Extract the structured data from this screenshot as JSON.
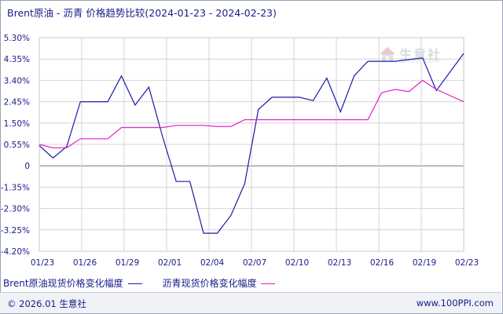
{
  "title": "Brent原油 - 沥青 价格趋势比较(2024-01-23 - 2024-02-23)",
  "watermark": {
    "logo_text": "生意社",
    "logo_sub": "100PPI.COM",
    "icon": "house-logo-icon"
  },
  "legend": [
    {
      "label": "Brent原油现货价格变化幅度",
      "color": "#1a1aa8"
    },
    {
      "label": "沥青现货价格变化幅度",
      "color": "#e020c8"
    }
  ],
  "footer": {
    "copyright": "© 2026.01 生意社",
    "site": "www.100PPI.com"
  },
  "chart_data": {
    "type": "line",
    "x_tick_labels": [
      "01/23",
      "01/26",
      "01/29",
      "02/01",
      "02/04",
      "02/07",
      "02/10",
      "02/13",
      "02/16",
      "02/19",
      "02/23"
    ],
    "y_tick_labels": [
      "5.30%",
      "4.35%",
      "3.40%",
      "2.45%",
      "1.50%",
      "0.55%",
      "0",
      "-1.35%",
      "-2.30%",
      "-3.25%",
      "-4.20%"
    ],
    "ylim": [
      -4.2,
      5.3
    ],
    "xlim": [
      "2024-01-23",
      "2024-02-23"
    ],
    "grid": true,
    "legend_position": "bottom",
    "series": [
      {
        "name": "Brent原油现货价格变化幅度",
        "color": "#1a1aa8",
        "points": [
          [
            "2024-01-23",
            0.5
          ],
          [
            "2024-01-24",
            -0.05
          ],
          [
            "2024-01-25",
            0.45
          ],
          [
            "2024-01-26",
            2.45
          ],
          [
            "2024-01-28",
            2.45
          ],
          [
            "2024-01-29",
            3.6
          ],
          [
            "2024-01-30",
            2.3
          ],
          [
            "2024-01-31",
            3.1
          ],
          [
            "2024-02-01",
            0.9
          ],
          [
            "2024-02-02",
            -1.1
          ],
          [
            "2024-02-03",
            -1.1
          ],
          [
            "2024-02-04",
            -3.4
          ],
          [
            "2024-02-05",
            -3.4
          ],
          [
            "2024-02-06",
            -2.6
          ],
          [
            "2024-02-07",
            -1.2
          ],
          [
            "2024-02-08",
            2.1
          ],
          [
            "2024-02-09",
            2.65
          ],
          [
            "2024-02-11",
            2.65
          ],
          [
            "2024-02-12",
            2.5
          ],
          [
            "2024-02-13",
            3.5
          ],
          [
            "2024-02-14",
            2.0
          ],
          [
            "2024-02-15",
            3.6
          ],
          [
            "2024-02-16",
            4.25
          ],
          [
            "2024-02-18",
            4.25
          ],
          [
            "2024-02-20",
            4.4
          ],
          [
            "2024-02-21",
            2.95
          ],
          [
            "2024-02-23",
            4.6
          ]
        ]
      },
      {
        "name": "沥青现货价格变化幅度",
        "color": "#e020c8",
        "points": [
          [
            "2024-01-23",
            0.55
          ],
          [
            "2024-01-24",
            0.4
          ],
          [
            "2024-01-25",
            0.4
          ],
          [
            "2024-01-26",
            0.8
          ],
          [
            "2024-01-28",
            0.8
          ],
          [
            "2024-01-29",
            1.3
          ],
          [
            "2024-02-01",
            1.3
          ],
          [
            "2024-02-02",
            1.4
          ],
          [
            "2024-02-04",
            1.4
          ],
          [
            "2024-02-05",
            1.35
          ],
          [
            "2024-02-06",
            1.35
          ],
          [
            "2024-02-07",
            1.65
          ],
          [
            "2024-02-16",
            1.65
          ],
          [
            "2024-02-17",
            2.85
          ],
          [
            "2024-02-18",
            3.0
          ],
          [
            "2024-02-19",
            2.9
          ],
          [
            "2024-02-20",
            3.4
          ],
          [
            "2024-02-21",
            3.0
          ],
          [
            "2024-02-23",
            2.45
          ]
        ]
      }
    ]
  }
}
